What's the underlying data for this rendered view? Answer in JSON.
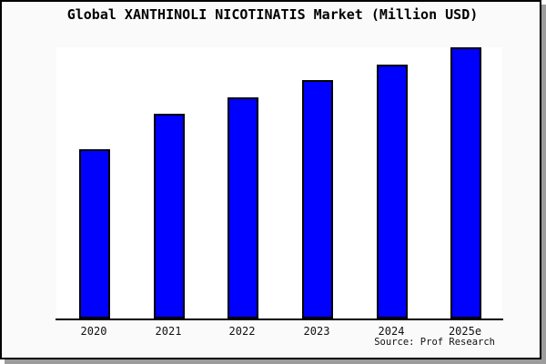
{
  "chart_data": {
    "type": "bar",
    "title": "Global XANTHINOLI NICOTINATIS Market (Million USD)",
    "categories": [
      "2020",
      "2021",
      "2022",
      "2023",
      "2024",
      "2025e"
    ],
    "values": [
      62.5,
      75.5,
      81.5,
      88,
      93.5,
      100
    ],
    "xlabel": "",
    "ylabel": "",
    "ylim": [
      0,
      100
    ],
    "grid": false,
    "legend": false,
    "bar_color": "#0000ff",
    "bar_border_color": "#000000",
    "plot_background": "#ffffff",
    "card_background": "#fafafa",
    "axis_color": "#000000",
    "shadow_color": "#9c9c9c"
  },
  "footer": {
    "source_label": "Source: Prof Research"
  }
}
